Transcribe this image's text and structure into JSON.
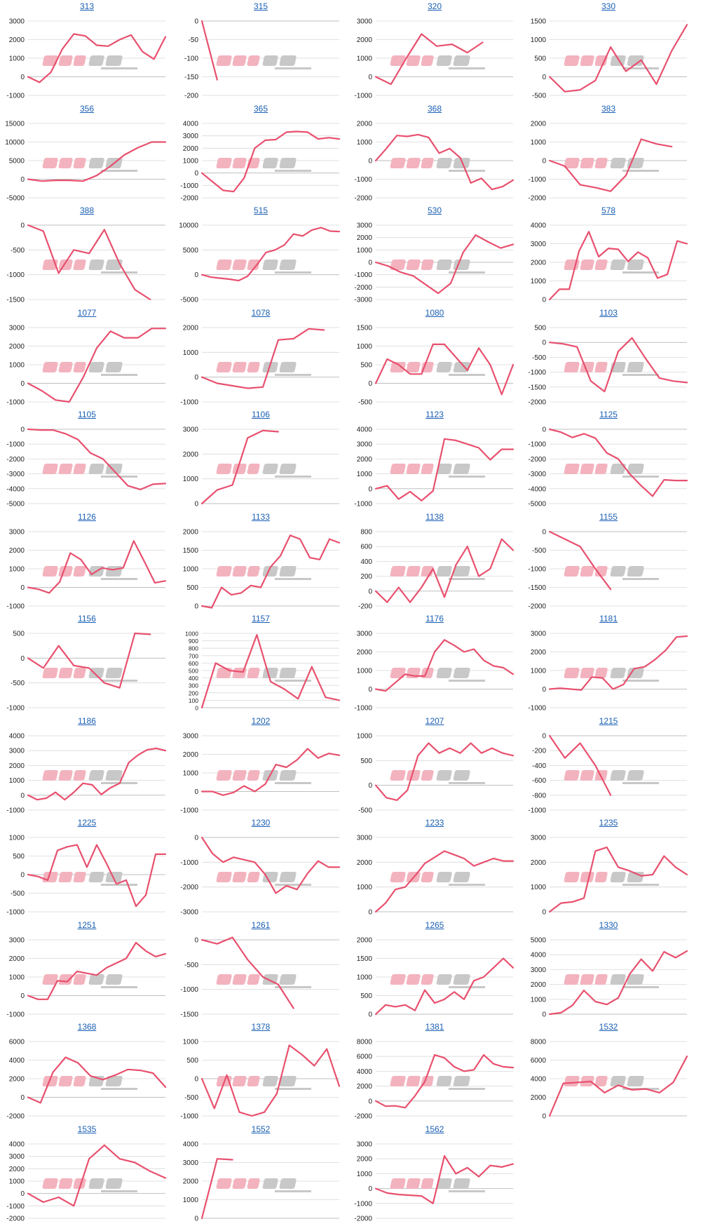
{
  "style": {
    "line_color": "#e8506e",
    "grid_color": "#d9d9d9",
    "axis_color": "#bfbfbf",
    "tick_color": "#222222",
    "title_color": "#1a5fb4"
  },
  "watermark": {
    "kind": "logo",
    "pink_color": "#f3b3be",
    "gray_color": "#c8c8c8"
  },
  "chart_data": [
    {
      "type": "line",
      "title": "313",
      "ylim": [
        -1000,
        3000
      ],
      "yticks": [
        "3000",
        "2000",
        "1000",
        "0",
        "-1000"
      ],
      "values": [
        0,
        -300,
        250,
        1500,
        2300,
        2200,
        1700,
        1650,
        2000,
        2250,
        1350,
        950,
        2150
      ]
    },
    {
      "type": "line",
      "title": "315",
      "ylim": [
        -200,
        0
      ],
      "yticks": [
        "0",
        "-50",
        "-100",
        "-150",
        "-200"
      ],
      "values": [
        0,
        -158
      ]
    },
    {
      "type": "line",
      "title": "320",
      "ylim": [
        -1000,
        3000
      ],
      "yticks": [
        "3000",
        "2000",
        "1000",
        "0",
        "-1000"
      ],
      "values": [
        0,
        -400,
        1000,
        2300,
        1650,
        1750,
        1300,
        1850
      ]
    },
    {
      "type": "line",
      "title": "330",
      "ylim": [
        -500,
        1500
      ],
      "yticks": [
        "1500",
        "1000",
        "500",
        "0",
        "-500"
      ],
      "values": [
        0,
        -400,
        -350,
        -100,
        800,
        150,
        450,
        -200,
        700,
        1400
      ]
    },
    {
      "type": "line",
      "title": "356",
      "ylim": [
        -5000,
        15000
      ],
      "yticks": [
        "15000",
        "10000",
        "5000",
        "0",
        "-5000"
      ],
      "values": [
        0,
        -500,
        -300,
        -300,
        -500,
        1000,
        3500,
        6500,
        8500,
        10000,
        10000
      ]
    },
    {
      "type": "line",
      "title": "365",
      "ylim": [
        -2000,
        4000
      ],
      "yticks": [
        "4000",
        "3000",
        "2000",
        "1000",
        "0",
        "-1000",
        "-2000"
      ],
      "values": [
        0,
        -700,
        -1400,
        -1500,
        -400,
        2000,
        2650,
        2700,
        3300,
        3350,
        3300,
        2750,
        2850,
        2750
      ]
    },
    {
      "type": "line",
      "title": "368",
      "ylim": [
        -2000,
        2000
      ],
      "yticks": [
        "2000",
        "1000",
        "0",
        "-1000",
        "-2000"
      ],
      "values": [
        0,
        650,
        1350,
        1300,
        1400,
        1250,
        400,
        650,
        150,
        -1200,
        -950,
        -1550,
        -1400,
        -1050
      ]
    },
    {
      "type": "line",
      "title": "383",
      "ylim": [
        -2000,
        2000
      ],
      "yticks": [
        "2000",
        "1000",
        "0",
        "-1000",
        "-2000"
      ],
      "values": [
        0,
        -300,
        -1300,
        -1450,
        -1650,
        -800,
        1150,
        900,
        750
      ]
    },
    {
      "type": "line",
      "title": "388",
      "ylim": [
        -1500,
        0
      ],
      "yticks": [
        "0",
        "-500",
        "-1000",
        "-1500"
      ],
      "values": [
        0,
        -120,
        -970,
        -500,
        -570,
        -90,
        -780,
        -1300,
        -1500
      ]
    },
    {
      "type": "line",
      "title": "515",
      "ylim": [
        -5000,
        10000
      ],
      "yticks": [
        "10000",
        "5000",
        "0",
        "-5000"
      ],
      "values": [
        0,
        -500,
        -700,
        -900,
        -1200,
        -300,
        2000,
        4500,
        5000,
        6000,
        8200,
        7800,
        9000,
        9500,
        8800,
        8700
      ]
    },
    {
      "type": "line",
      "title": "530",
      "ylim": [
        -3000,
        3000
      ],
      "yticks": [
        "3000",
        "2000",
        "1000",
        "0",
        "-1000",
        "-2000",
        "-3000"
      ],
      "values": [
        0,
        -300,
        -800,
        -1100,
        -1800,
        -2500,
        -1700,
        800,
        2200,
        1650,
        1150,
        1450
      ]
    },
    {
      "type": "line",
      "title": "578",
      "ylim": [
        0,
        4000
      ],
      "yticks": [
        "4000",
        "3000",
        "2000",
        "1000",
        "0"
      ],
      "values": [
        0,
        550,
        550,
        2600,
        3650,
        2300,
        2750,
        2700,
        2050,
        2550,
        2250,
        1150,
        1350,
        3150,
        3000
      ]
    },
    {
      "type": "line",
      "title": "1077",
      "ylim": [
        -1000,
        3000
      ],
      "yticks": [
        "3000",
        "2000",
        "1000",
        "0",
        "-1000"
      ],
      "values": [
        0,
        -400,
        -900,
        -1000,
        300,
        1900,
        2800,
        2450,
        2450,
        2950,
        2950
      ]
    },
    {
      "type": "line",
      "title": "1078",
      "ylim": [
        -1000,
        2000
      ],
      "yticks": [
        "2000",
        "1000",
        "0",
        "-1000"
      ],
      "values": [
        0,
        -250,
        -350,
        -450,
        -400,
        1500,
        1550,
        1950,
        1900
      ]
    },
    {
      "type": "line",
      "title": "1080",
      "ylim": [
        -500,
        1500
      ],
      "yticks": [
        "1500",
        "1000",
        "500",
        "0",
        "-500"
      ],
      "values": [
        0,
        650,
        500,
        250,
        250,
        1050,
        1050,
        700,
        350,
        950,
        500,
        -300,
        500
      ]
    },
    {
      "type": "line",
      "title": "1103",
      "ylim": [
        -2000,
        500
      ],
      "yticks": [
        "500",
        "0",
        "-500",
        "-1000",
        "-1500",
        "-2000"
      ],
      "values": [
        0,
        -50,
        -150,
        -1300,
        -1650,
        -300,
        150,
        -550,
        -1200,
        -1300,
        -1350
      ]
    },
    {
      "type": "line",
      "title": "1105",
      "ylim": [
        -5000,
        0
      ],
      "yticks": [
        "0",
        "-1000",
        "-2000",
        "-3000",
        "-4000",
        "-5000"
      ],
      "values": [
        0,
        -50,
        -50,
        -300,
        -700,
        -1600,
        -2000,
        -2900,
        -3800,
        -4050,
        -3700,
        -3650
      ]
    },
    {
      "type": "line",
      "title": "1106",
      "ylim": [
        0,
        3000
      ],
      "yticks": [
        "3000",
        "2000",
        "1000",
        "0"
      ],
      "values": [
        0,
        550,
        750,
        2650,
        2950,
        2900
      ]
    },
    {
      "type": "line",
      "title": "1123",
      "ylim": [
        -1000,
        4000
      ],
      "yticks": [
        "4000",
        "3000",
        "2000",
        "1000",
        "0",
        "-1000"
      ],
      "values": [
        0,
        200,
        -700,
        -200,
        -800,
        -150,
        3350,
        3250,
        3000,
        2750,
        1950,
        2650,
        2650
      ]
    },
    {
      "type": "line",
      "title": "1125",
      "ylim": [
        -5000,
        0
      ],
      "yticks": [
        "0",
        "-1000",
        "-2000",
        "-3000",
        "-4000",
        "-5000"
      ],
      "values": [
        0,
        -200,
        -550,
        -300,
        -600,
        -1600,
        -2000,
        -3000,
        -3800,
        -4500,
        -3400,
        -3450,
        -3450
      ]
    },
    {
      "type": "line",
      "title": "1126",
      "ylim": [
        -1000,
        3000
      ],
      "yticks": [
        "3000",
        "2000",
        "1000",
        "0",
        "-1000"
      ],
      "values": [
        0,
        -100,
        -300,
        300,
        1850,
        1500,
        700,
        1050,
        950,
        1050,
        2500,
        1400,
        250,
        350
      ]
    },
    {
      "type": "line",
      "title": "1133",
      "ylim": [
        0,
        2000
      ],
      "yticks": [
        "2000",
        "1500",
        "1000",
        "500",
        "0"
      ],
      "values": [
        0,
        -50,
        500,
        300,
        350,
        550,
        500,
        1050,
        1350,
        1900,
        1800,
        1300,
        1250,
        1800,
        1700
      ]
    },
    {
      "type": "line",
      "title": "1138",
      "ylim": [
        -200,
        800
      ],
      "yticks": [
        "800",
        "600",
        "400",
        "200",
        "0",
        "-200"
      ],
      "values": [
        0,
        -150,
        50,
        -150,
        50,
        300,
        -80,
        350,
        600,
        200,
        300,
        700,
        550
      ]
    },
    {
      "type": "line",
      "title": "1155",
      "ylim": [
        -2000,
        0
      ],
      "yticks": [
        "0",
        "-500",
        "-1000",
        "-1500",
        "-2000"
      ],
      "values": [
        0,
        -200,
        -400,
        -1000,
        -1550
      ]
    },
    {
      "type": "line",
      "title": "1156",
      "ylim": [
        -1000,
        500
      ],
      "yticks": [
        "500",
        "0",
        "-500",
        "-1000"
      ],
      "values": [
        0,
        -200,
        250,
        -150,
        -200,
        -500,
        -600,
        500,
        480
      ]
    },
    {
      "type": "line",
      "title": "1157",
      "ylim": [
        0,
        1000
      ],
      "yticks": [
        "1000",
        "900",
        "800",
        "700",
        "600",
        "500",
        "400",
        "300",
        "200",
        "100",
        "0"
      ],
      "values": [
        0,
        600,
        500,
        480,
        980,
        350,
        250,
        120,
        550,
        140,
        100
      ]
    },
    {
      "type": "line",
      "title": "1176",
      "ylim": [
        -1000,
        3000
      ],
      "yticks": [
        "3000",
        "2000",
        "1000",
        "0",
        "-1000"
      ],
      "values": [
        0,
        -100,
        350,
        800,
        700,
        700,
        2000,
        2650,
        2350,
        2000,
        2150,
        1550,
        1250,
        1150,
        800
      ]
    },
    {
      "type": "line",
      "title": "1181",
      "ylim": [
        -1000,
        3000
      ],
      "yticks": [
        "3000",
        "2000",
        "1000",
        "0",
        "-1000"
      ],
      "values": [
        0,
        50,
        0,
        -50,
        650,
        600,
        0,
        250,
        1100,
        1200,
        1600,
        2100,
        2800,
        2850
      ]
    },
    {
      "type": "line",
      "title": "1186",
      "ylim": [
        -1000,
        4000
      ],
      "yticks": [
        "4000",
        "3000",
        "2000",
        "1000",
        "0",
        "-1000"
      ],
      "values": [
        0,
        -300,
        -200,
        200,
        -300,
        200,
        800,
        700,
        50,
        500,
        800,
        2200,
        2700,
        3050,
        3150,
        3000
      ]
    },
    {
      "type": "line",
      "title": "1202",
      "ylim": [
        -1000,
        3000
      ],
      "yticks": [
        "3000",
        "2000",
        "1000",
        "0",
        "-1000"
      ],
      "values": [
        0,
        0,
        -200,
        -50,
        300,
        0,
        400,
        1450,
        1300,
        1700,
        2300,
        1800,
        2050,
        1950
      ]
    },
    {
      "type": "line",
      "title": "1207",
      "ylim": [
        -500,
        1000
      ],
      "yticks": [
        "1000",
        "500",
        "0",
        "-500"
      ],
      "values": [
        0,
        -250,
        -300,
        -100,
        600,
        850,
        650,
        750,
        650,
        850,
        650,
        750,
        650,
        600
      ]
    },
    {
      "type": "line",
      "title": "1215",
      "ylim": [
        -1000,
        0
      ],
      "yticks": [
        "0",
        "-200",
        "-400",
        "-600",
        "-800",
        "-1000"
      ],
      "values": [
        0,
        -300,
        -100,
        -400,
        -800
      ]
    },
    {
      "type": "line",
      "title": "1225",
      "ylim": [
        -1000,
        1000
      ],
      "yticks": [
        "1000",
        "500",
        "0",
        "-500",
        "-1000"
      ],
      "values": [
        0,
        -50,
        -150,
        650,
        750,
        800,
        200,
        800,
        300,
        -250,
        -150,
        -850,
        -550,
        550,
        550
      ]
    },
    {
      "type": "line",
      "title": "1230",
      "ylim": [
        -3000,
        0
      ],
      "yticks": [
        "0",
        "-1000",
        "-2000",
        "-3000"
      ],
      "values": [
        0,
        -650,
        -1000,
        -800,
        -900,
        -1000,
        -1500,
        -2250,
        -1950,
        -2100,
        -1450,
        -950,
        -1200,
        -1200
      ]
    },
    {
      "type": "line",
      "title": "1233",
      "ylim": [
        0,
        3000
      ],
      "yticks": [
        "3000",
        "2000",
        "1000",
        "0"
      ],
      "values": [
        0,
        350,
        900,
        1000,
        1450,
        1950,
        2200,
        2450,
        2300,
        2150,
        1850,
        2000,
        2150,
        2050,
        2050
      ]
    },
    {
      "type": "line",
      "title": "1235",
      "ylim": [
        0,
        3000
      ],
      "yticks": [
        "3000",
        "2000",
        "1000",
        "0"
      ],
      "values": [
        0,
        350,
        400,
        550,
        2450,
        2600,
        1800,
        1650,
        1450,
        1500,
        2250,
        1800,
        1500
      ]
    },
    {
      "type": "line",
      "title": "1251",
      "ylim": [
        -1000,
        3000
      ],
      "yticks": [
        "3000",
        "2000",
        "1000",
        "0",
        "-1000"
      ],
      "values": [
        0,
        -200,
        -200,
        800,
        750,
        1300,
        1200,
        1100,
        1500,
        1750,
        2000,
        2850,
        2400,
        2100,
        2250
      ]
    },
    {
      "type": "line",
      "title": "1261",
      "ylim": [
        -1500,
        0
      ],
      "yticks": [
        "0",
        "-500",
        "-1000",
        "-1500"
      ],
      "values": [
        0,
        -80,
        50,
        -400,
        -750,
        -900,
        -1380
      ]
    },
    {
      "type": "line",
      "title": "1265",
      "ylim": [
        0,
        2000
      ],
      "yticks": [
        "2000",
        "1500",
        "1000",
        "500",
        "0"
      ],
      "values": [
        0,
        250,
        200,
        250,
        100,
        650,
        300,
        400,
        600,
        400,
        900,
        1000,
        1250,
        1500,
        1250
      ]
    },
    {
      "type": "line",
      "title": "1330",
      "ylim": [
        0,
        5000
      ],
      "yticks": [
        "5000",
        "4000",
        "3000",
        "2000",
        "1000",
        "0"
      ],
      "values": [
        0,
        100,
        600,
        1600,
        850,
        650,
        1100,
        2700,
        3700,
        2900,
        4200,
        3800,
        4250
      ]
    },
    {
      "type": "line",
      "title": "1368",
      "ylim": [
        -2000,
        6000
      ],
      "yticks": [
        "6000",
        "4000",
        "2000",
        "0",
        "-2000"
      ],
      "values": [
        0,
        -600,
        2700,
        4300,
        3700,
        2300,
        1900,
        2400,
        3000,
        2900,
        2600,
        1100
      ]
    },
    {
      "type": "line",
      "title": "1378",
      "ylim": [
        -1000,
        1000
      ],
      "yticks": [
        "1000",
        "500",
        "0",
        "-500",
        "-1000"
      ],
      "values": [
        0,
        -800,
        100,
        -900,
        -1000,
        -900,
        -400,
        900,
        650,
        350,
        800,
        -200
      ]
    },
    {
      "type": "line",
      "title": "1381",
      "ylim": [
        -2000,
        8000
      ],
      "yticks": [
        "8000",
        "6000",
        "4000",
        "2000",
        "0",
        "-2000"
      ],
      "values": [
        0,
        -700,
        -650,
        -900,
        700,
        2600,
        6200,
        5800,
        4600,
        4000,
        4200,
        6200,
        5000,
        4600,
        4500
      ]
    },
    {
      "type": "line",
      "title": "1532",
      "ylim": [
        0,
        8000
      ],
      "yticks": [
        "8000",
        "6000",
        "4000",
        "2000",
        "0"
      ],
      "values": [
        0,
        3500,
        3600,
        3700,
        2500,
        3300,
        2800,
        2900,
        2500,
        3600,
        6400
      ]
    },
    {
      "type": "line",
      "title": "1535",
      "ylim": [
        -2000,
        4000
      ],
      "yticks": [
        "4000",
        "3000",
        "2000",
        "1000",
        "0",
        "-1000",
        "-2000"
      ],
      "values": [
        0,
        -700,
        -300,
        -1000,
        2800,
        3900,
        2800,
        2500,
        1800,
        1250
      ]
    },
    {
      "type": "line",
      "title": "1552",
      "ylim": [
        0,
        4000
      ],
      "yticks": [
        "4000",
        "3000",
        "2000",
        "1000",
        "0"
      ],
      "values": [
        0,
        3200,
        3150
      ]
    },
    {
      "type": "line",
      "title": "1562",
      "ylim": [
        -2000,
        3000
      ],
      "yticks": [
        "3000",
        "2000",
        "1000",
        "0",
        "-1000",
        "-2000"
      ],
      "values": [
        0,
        -300,
        -400,
        -450,
        -500,
        -1000,
        2200,
        1000,
        1400,
        800,
        1550,
        1450,
        1650
      ]
    }
  ]
}
